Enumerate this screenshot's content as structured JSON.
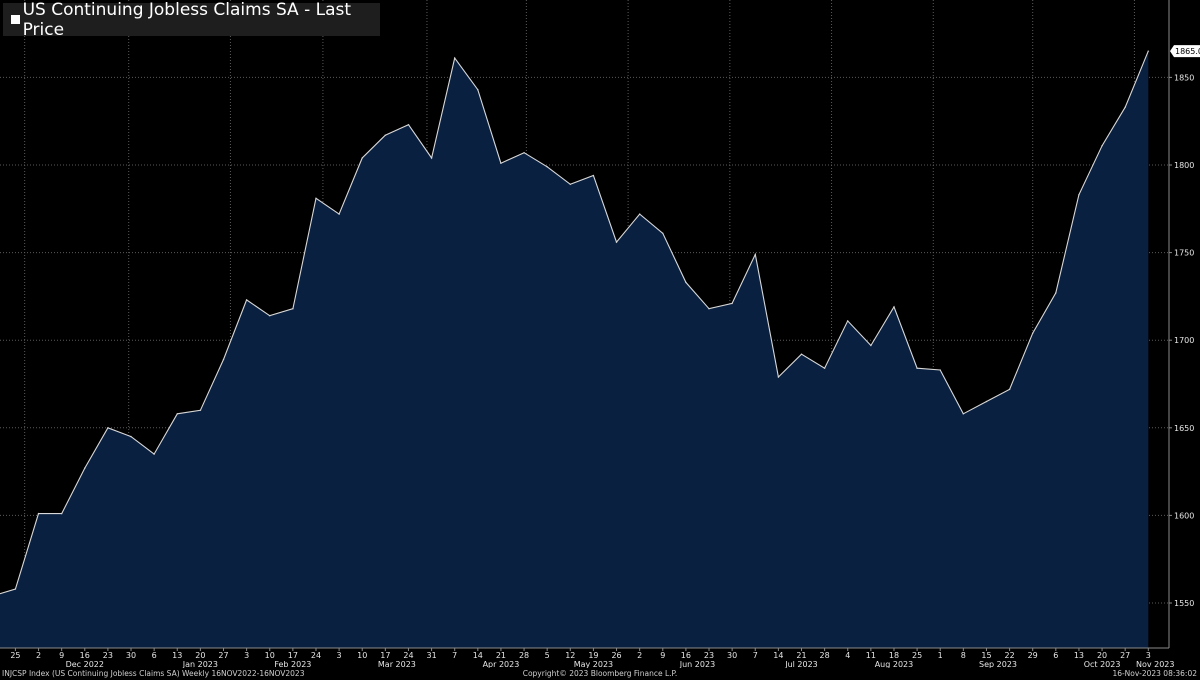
{
  "title": "US Continuing Jobless Claims SA - Last Price",
  "footer": {
    "left": "INJCSP Index (US Continuing Jobless Claims SA)  Weekly 16NOV2022-16NOV2023",
    "center": "Copyright© 2023 Bloomberg Finance L.P.",
    "right": "16-Nov-2023 08:36:02"
  },
  "colors": {
    "background": "#000000",
    "area_fill": "#0a2040",
    "line": "#d8d8d8",
    "grid": "#5a5a5a",
    "last_value_box": "#ffffff"
  },
  "chart_data": {
    "type": "area",
    "title": "US Continuing Jobless Claims SA - Last Price",
    "last_value_label": "1865.0",
    "ylim": [
      1520,
      1875
    ],
    "y_ticks": [
      "1550",
      "1600",
      "1650",
      "1700",
      "1750",
      "1800",
      "1850"
    ],
    "grid": true,
    "x_day_labels": [
      "25",
      "2",
      "9",
      "16",
      "23",
      "30",
      "6",
      "13",
      "20",
      "27",
      "3",
      "10",
      "17",
      "24",
      "3",
      "10",
      "17",
      "24",
      "31",
      "7",
      "14",
      "21",
      "28",
      "5",
      "12",
      "19",
      "26",
      "2",
      "9",
      "16",
      "23",
      "30",
      "7",
      "14",
      "21",
      "28",
      "4",
      "11",
      "18",
      "25",
      "1",
      "8",
      "15",
      "22",
      "29",
      "6",
      "13",
      "20",
      "27",
      "3"
    ],
    "x_month_labels": [
      {
        "label": "Dec 2022",
        "index": 3
      },
      {
        "label": "Jan 2023",
        "index": 8
      },
      {
        "label": "Feb 2023",
        "index": 12
      },
      {
        "label": "Mar 2023",
        "index": 16.5
      },
      {
        "label": "Apr 2023",
        "index": 21
      },
      {
        "label": "May 2023",
        "index": 25
      },
      {
        "label": "Jun 2023",
        "index": 29.5
      },
      {
        "label": "Jul 2023",
        "index": 34
      },
      {
        "label": "Aug 2023",
        "index": 38
      },
      {
        "label": "Sep 2023",
        "index": 42.5
      },
      {
        "label": "Oct 2023",
        "index": 47
      },
      {
        "label": "Nov 2023",
        "index": 49.3
      }
    ],
    "series": [
      {
        "x": [
          "2022-11-19",
          "2022-11-26",
          "2022-12-03",
          "2022-12-10",
          "2022-12-17",
          "2022-12-24",
          "2022-12-31",
          "2023-01-07",
          "2023-01-14",
          "2023-01-21",
          "2023-01-28",
          "2023-02-04",
          "2023-02-11",
          "2023-02-18",
          "2023-02-25",
          "2023-03-04",
          "2023-03-11",
          "2023-03-18",
          "2023-03-25",
          "2023-04-01",
          "2023-04-08",
          "2023-04-15",
          "2023-04-22",
          "2023-04-29",
          "2023-05-06",
          "2023-05-13",
          "2023-05-20",
          "2023-05-27",
          "2023-06-03",
          "2023-06-10",
          "2023-06-17",
          "2023-06-24",
          "2023-07-01",
          "2023-07-08",
          "2023-07-15",
          "2023-07-22",
          "2023-07-29",
          "2023-08-05",
          "2023-08-12",
          "2023-08-19",
          "2023-08-26",
          "2023-09-02",
          "2023-09-09",
          "2023-09-16",
          "2023-09-23",
          "2023-09-30",
          "2023-10-07",
          "2023-10-14",
          "2023-10-21",
          "2023-10-28",
          "2023-11-04"
        ],
        "values": [
          1554,
          1558,
          1601,
          1601,
          1627,
          1650,
          1645,
          1635,
          1658,
          1660,
          1689,
          1723,
          1714,
          1718,
          1781,
          1772,
          1804,
          1817,
          1823,
          1804,
          1861,
          1843,
          1801,
          1807,
          1799,
          1789,
          1794,
          1756,
          1772,
          1761,
          1733,
          1718,
          1721,
          1749,
          1679,
          1692,
          1684,
          1711,
          1697,
          1719,
          1684,
          1683,
          1658,
          1665,
          1672,
          1704,
          1727,
          1783,
          1811,
          1833,
          1865
        ]
      }
    ]
  }
}
